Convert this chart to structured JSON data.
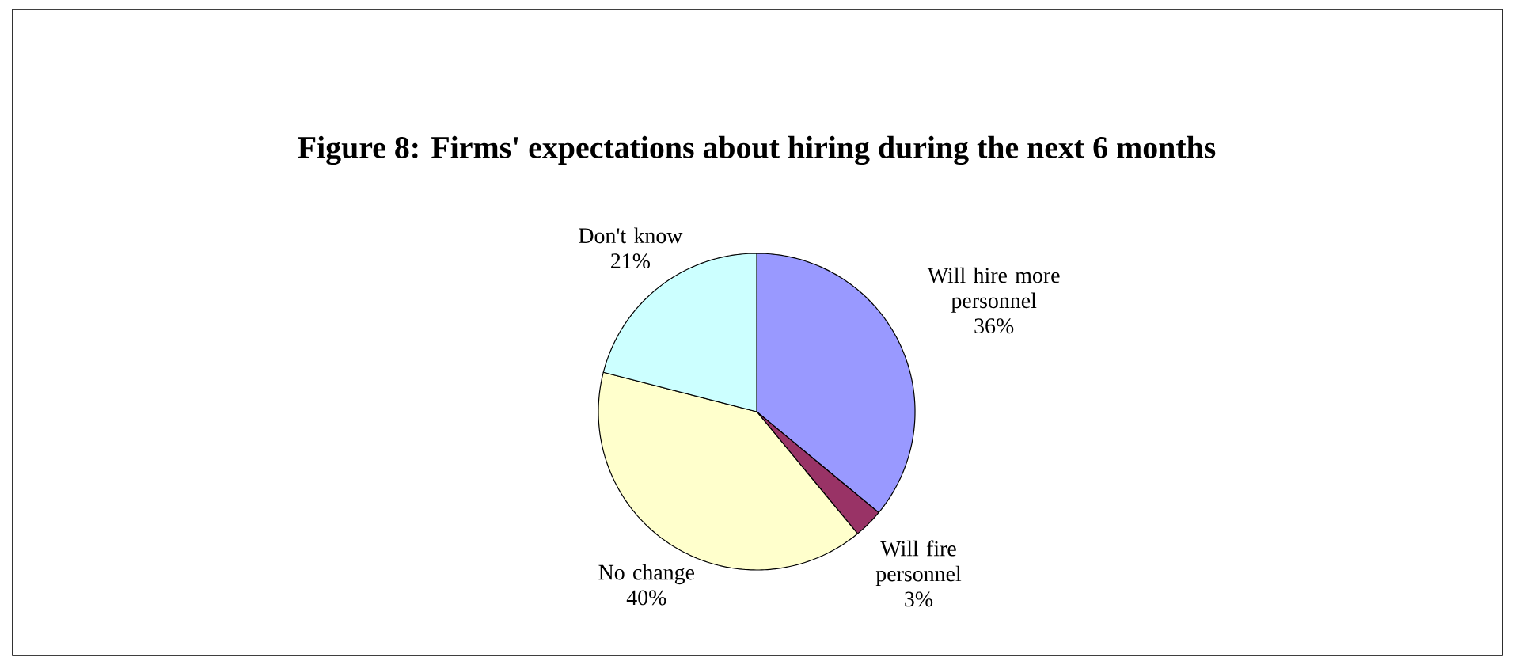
{
  "chart_data": {
    "type": "pie",
    "title": "Figure 8: Firms' expectations about hiring during the next 6 months",
    "categories": [
      "Will hire more personnel",
      "Will fire personnel",
      "No change",
      "Don't know"
    ],
    "values": [
      36,
      3,
      40,
      21
    ],
    "colors": [
      "#9999ff",
      "#993366",
      "#ffffcc",
      "#ccffff"
    ],
    "value_labels": [
      "36%",
      "3%",
      "40%",
      "21%"
    ]
  }
}
